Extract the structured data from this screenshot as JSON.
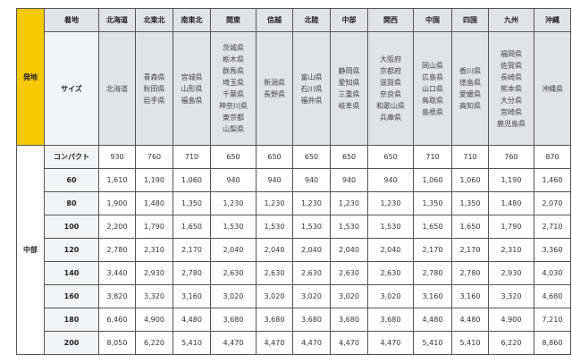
{
  "table": {
    "origin_header": "発地",
    "origin": "中部",
    "dest_header": "着地",
    "size_header": "サイズ",
    "regions": [
      {
        "name": "北海道",
        "prefectures": [
          "北海道"
        ]
      },
      {
        "name": "北東北",
        "prefectures": [
          "青森県",
          "秋田県",
          "岩手県"
        ]
      },
      {
        "name": "南東北",
        "prefectures": [
          "宮城県",
          "山形県",
          "福島県"
        ]
      },
      {
        "name": "関東",
        "prefectures": [
          "茨城県",
          "栃木県",
          "群馬県",
          "埼玉県",
          "千葉県",
          "神奈川県",
          "東京都",
          "山梨県"
        ]
      },
      {
        "name": "信越",
        "prefectures": [
          "新潟県",
          "長野県"
        ]
      },
      {
        "name": "北陸",
        "prefectures": [
          "富山県",
          "石川県",
          "福井県"
        ]
      },
      {
        "name": "中部",
        "prefectures": [
          "静岡県",
          "愛知県",
          "三重県",
          "岐阜県"
        ]
      },
      {
        "name": "関西",
        "prefectures": [
          "大阪府",
          "京都府",
          "滋賀県",
          "奈良県",
          "和歌山県",
          "兵庫県"
        ]
      },
      {
        "name": "中国",
        "prefectures": [
          "岡山県",
          "広島県",
          "山口県",
          "鳥取県",
          "島根県"
        ]
      },
      {
        "name": "四国",
        "prefectures": [
          "香川県",
          "徳島県",
          "愛媛県",
          "高知県"
        ]
      },
      {
        "name": "九州",
        "prefectures": [
          "福岡県",
          "佐賀県",
          "長崎県",
          "熊本県",
          "大分県",
          "宮崎県",
          "鹿児島県"
        ]
      },
      {
        "name": "沖縄",
        "prefectures": [
          "沖縄県"
        ]
      }
    ],
    "rows": [
      {
        "size": "コンパクト",
        "prices": [
          "930",
          "760",
          "710",
          "650",
          "650",
          "650",
          "650",
          "650",
          "710",
          "710",
          "760",
          "870"
        ]
      },
      {
        "size": "60",
        "prices": [
          "1,610",
          "1,190",
          "1,060",
          "940",
          "940",
          "940",
          "940",
          "940",
          "1,060",
          "1,060",
          "1,190",
          "1,460"
        ]
      },
      {
        "size": "80",
        "prices": [
          "1,900",
          "1,480",
          "1,350",
          "1,230",
          "1,230",
          "1,230",
          "1,230",
          "1,230",
          "1,350",
          "1,350",
          "1,480",
          "2,070"
        ]
      },
      {
        "size": "100",
        "prices": [
          "2,200",
          "1,790",
          "1,650",
          "1,530",
          "1,530",
          "1,530",
          "1,530",
          "1,530",
          "1,650",
          "1,650",
          "1,790",
          "2,710"
        ]
      },
      {
        "size": "120",
        "prices": [
          "2,780",
          "2,310",
          "2,170",
          "2,040",
          "2,040",
          "2,040",
          "2,040",
          "2,040",
          "2,170",
          "2,170",
          "2,310",
          "3,360"
        ]
      },
      {
        "size": "140",
        "prices": [
          "3,440",
          "2,930",
          "2,780",
          "2,630",
          "2,630",
          "2,630",
          "2,630",
          "2,630",
          "2,780",
          "2,780",
          "2,930",
          "4,030"
        ]
      },
      {
        "size": "160",
        "prices": [
          "3,820",
          "3,320",
          "3,160",
          "3,020",
          "3,020",
          "3,020",
          "3,020",
          "3,020",
          "3,160",
          "3,160",
          "3,320",
          "4,680"
        ]
      },
      {
        "size": "180",
        "prices": [
          "6,460",
          "4,900",
          "4,480",
          "3,680",
          "3,680",
          "3,680",
          "3,680",
          "3,680",
          "4,480",
          "4,480",
          "4,900",
          "7,210"
        ]
      },
      {
        "size": "200",
        "prices": [
          "8,050",
          "6,220",
          "5,410",
          "4,470",
          "4,470",
          "4,470",
          "4,470",
          "4,470",
          "5,410",
          "5,410",
          "6,220",
          "8,860"
        ]
      }
    ]
  },
  "colors": {
    "origin_bg": "#f7c900",
    "header_bg": "#e2e3e7",
    "label_bg": "#f3f4f6"
  }
}
